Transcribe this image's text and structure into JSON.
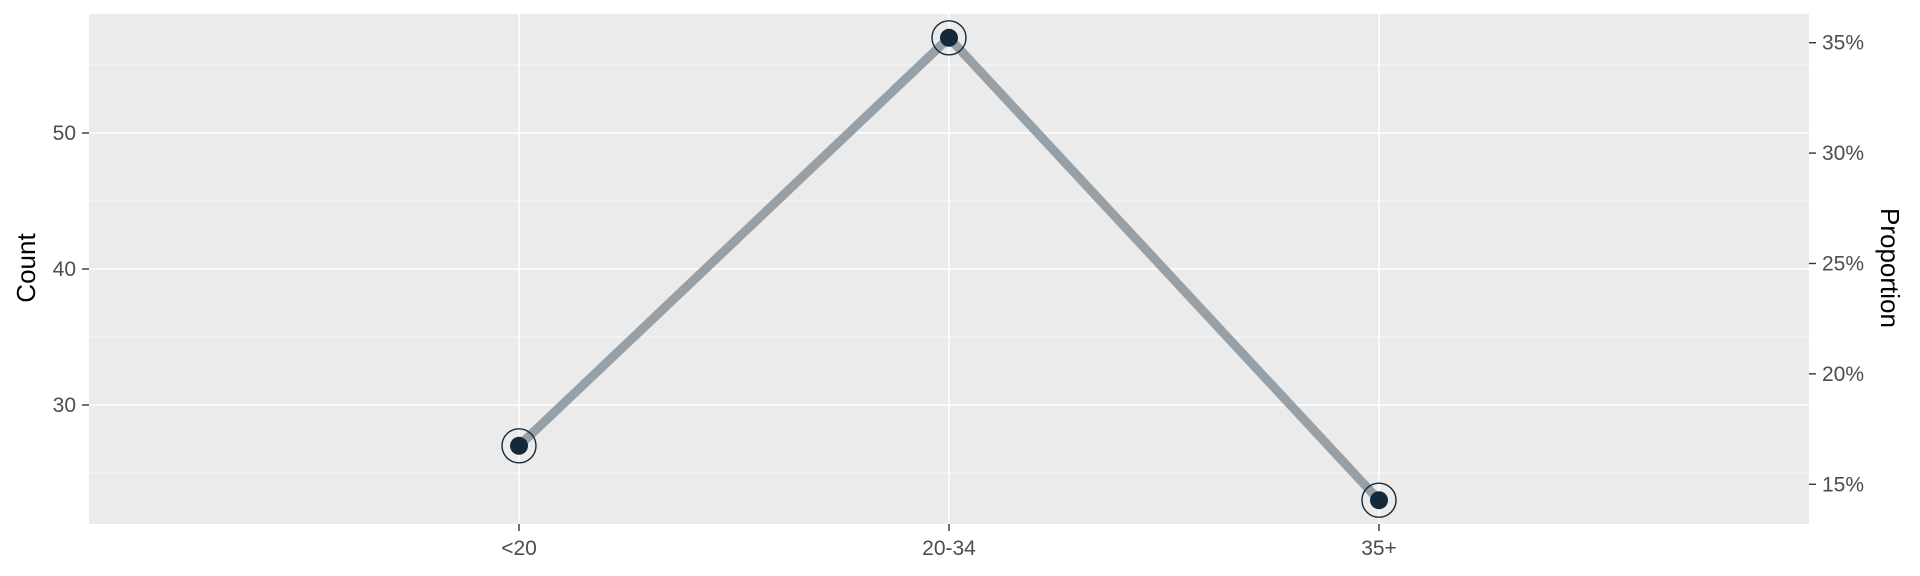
{
  "chart_data": {
    "type": "line",
    "title": "",
    "xlabel": "",
    "ylabel": "Count",
    "y2label": "Proportion",
    "categories": [
      "<20",
      "20-34",
      "35+"
    ],
    "series": [
      {
        "values": [
          27,
          57,
          23
        ]
      }
    ],
    "ylim": [
      21.25,
      58.75
    ],
    "yticks": [
      30,
      40,
      50
    ],
    "y2lim": [
      13.2,
      36.3
    ],
    "y2ticks": [
      {
        "value": 15,
        "label": "15%"
      },
      {
        "value": 20,
        "label": "20%"
      },
      {
        "value": 25,
        "label": "25%"
      },
      {
        "value": 30,
        "label": "30%"
      },
      {
        "value": 35,
        "label": "35%"
      }
    ],
    "grid": true,
    "legend": "none",
    "colors": {
      "panel": "#ebebeb",
      "grid": "#ffffff",
      "line": "#96a0a6",
      "point": "#14293a"
    }
  }
}
